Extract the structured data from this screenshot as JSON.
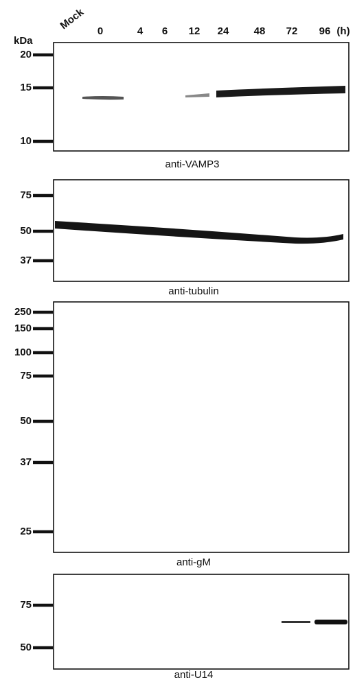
{
  "lanes": [
    "Mock",
    "0",
    "4",
    "6",
    "12",
    "24",
    "48",
    "72",
    "96"
  ],
  "time_unit": "(h)",
  "marker_unit": "kDa",
  "panels": [
    {
      "markers": [
        "20",
        "15",
        "10"
      ],
      "caption": "anti-VAMP3"
    },
    {
      "markers": [
        "75",
        "50",
        "37"
      ],
      "caption": "anti-tubulin"
    },
    {
      "markers": [
        "250",
        "150",
        "100",
        "75",
        "50",
        "37",
        "25"
      ],
      "caption": "anti-gM"
    },
    {
      "markers": [
        "75",
        "50"
      ],
      "caption": "anti-U14"
    }
  ]
}
